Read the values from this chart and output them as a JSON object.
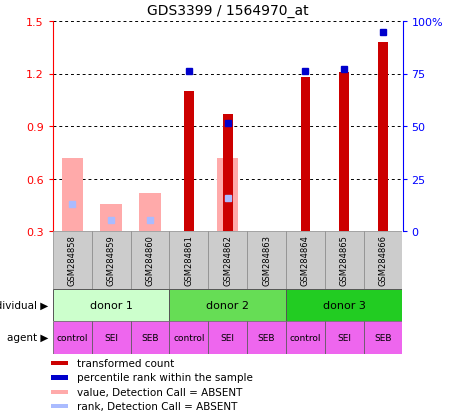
{
  "title": "GDS3399 / 1564970_at",
  "samples": [
    "GSM284858",
    "GSM284859",
    "GSM284860",
    "GSM284861",
    "GSM284862",
    "GSM284863",
    "GSM284864",
    "GSM284865",
    "GSM284866"
  ],
  "red_bars": [
    null,
    null,
    null,
    1.1,
    0.97,
    null,
    1.18,
    1.21,
    1.38
  ],
  "blue_squares": [
    null,
    null,
    null,
    1.215,
    0.915,
    null,
    1.215,
    1.225,
    1.435
  ],
  "pink_bars": [
    0.72,
    0.455,
    0.52,
    null,
    0.72,
    null,
    null,
    null,
    null
  ],
  "lightblue_squares": [
    0.455,
    0.365,
    0.365,
    null,
    0.49,
    null,
    null,
    null,
    null
  ],
  "ylim_left": [
    0.3,
    1.5
  ],
  "ylim_right": [
    0,
    100
  ],
  "yticks_left": [
    0.3,
    0.6,
    0.9,
    1.2,
    1.5
  ],
  "yticks_right": [
    0,
    25,
    50,
    75,
    100
  ],
  "ytick_labels_right": [
    "0",
    "25",
    "50",
    "75",
    "100%"
  ],
  "donors": [
    {
      "label": "donor 1",
      "cols": [
        0,
        1,
        2
      ],
      "color": "#ccffcc"
    },
    {
      "label": "donor 2",
      "cols": [
        3,
        4,
        5
      ],
      "color": "#66dd55"
    },
    {
      "label": "donor 3",
      "cols": [
        6,
        7,
        8
      ],
      "color": "#22cc22"
    }
  ],
  "agents": [
    "control",
    "SEI",
    "SEB",
    "control",
    "SEI",
    "SEB",
    "control",
    "SEI",
    "SEB"
  ],
  "agent_color": "#ee66ee",
  "red_color": "#cc0000",
  "blue_color": "#0000cc",
  "pink_color": "#ffaaaa",
  "lightblue_color": "#aabbff",
  "sample_bg": "#cccccc",
  "legend_items": [
    {
      "color": "#cc0000",
      "label": "transformed count"
    },
    {
      "color": "#0000cc",
      "label": "percentile rank within the sample"
    },
    {
      "color": "#ffaaaa",
      "label": "value, Detection Call = ABSENT"
    },
    {
      "color": "#aabbff",
      "label": "rank, Detection Call = ABSENT"
    }
  ]
}
